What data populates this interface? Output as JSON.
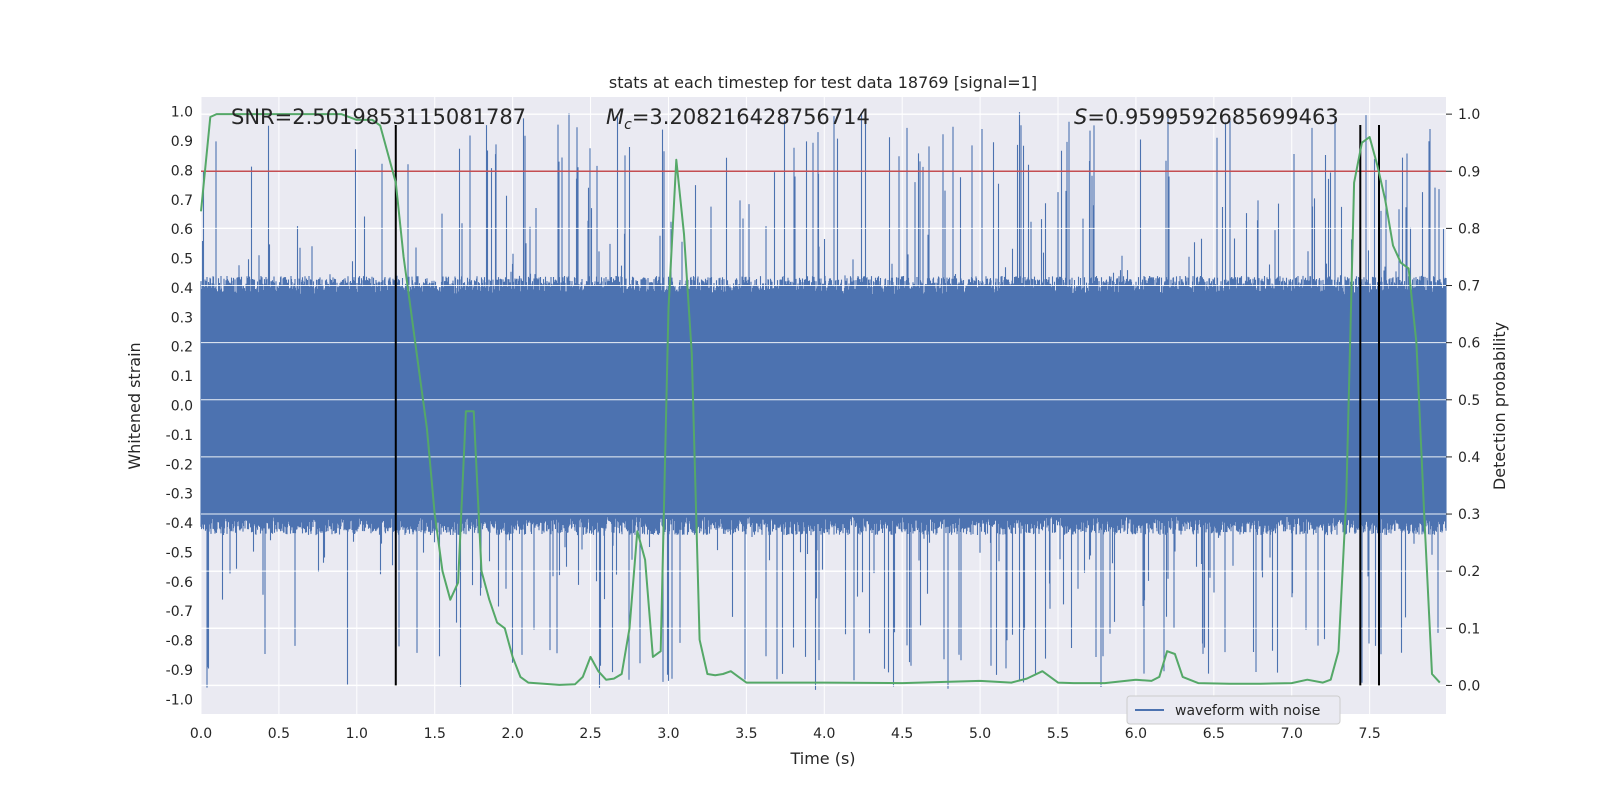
{
  "chart_data": {
    "type": "line",
    "title": "stats at each timestep for test data 18769 [signal=1]",
    "xlabel": "Time (s)",
    "ylabel_left": "Whitened strain",
    "ylabel_right": "Detection probability",
    "xlim": [
      0.0,
      7.99
    ],
    "ylim_left": [
      -1.05,
      1.05
    ],
    "ylim_right": [
      -0.05,
      1.03
    ],
    "x_ticks": [
      "0.0",
      "0.5",
      "1.0",
      "1.5",
      "2.0",
      "2.5",
      "3.0",
      "3.5",
      "4.0",
      "4.5",
      "5.0",
      "5.5",
      "6.0",
      "6.5",
      "7.0",
      "7.5"
    ],
    "left_ticks": [
      "1.0",
      "0.9",
      "0.8",
      "0.7",
      "0.6",
      "0.5",
      "0.4",
      "0.3",
      "0.2",
      "0.1",
      "0.0",
      "-0.1",
      "-0.2",
      "-0.3",
      "-0.4",
      "-0.5",
      "-0.6",
      "-0.7",
      "-0.8",
      "-0.9",
      "-1.0"
    ],
    "right_ticks": [
      "1.0",
      "0.9",
      "0.8",
      "0.7",
      "0.6",
      "0.5",
      "0.4",
      "0.3",
      "0.2",
      "0.1",
      "0.0"
    ],
    "grid": true,
    "legend_position": "lower-right",
    "colors": {
      "background": "#eaeaf2",
      "waveform": "#4c72b0",
      "probability": "#55a868",
      "threshold": "#c44e52",
      "markers": "#000000",
      "grid": "#ffffff"
    },
    "annotations": {
      "snr_text": "SNR=2.5019853115081787",
      "mc_symbol": "M",
      "mc_subscript": "c",
      "mc_value": "=3.208216428756714",
      "s_symbol": "S",
      "s_value": "=0.9599592685699463"
    },
    "series": [
      {
        "name": "waveform with noise",
        "axis": "left",
        "kind": "noise",
        "band_upper": 0.42,
        "band_lower": -0.42,
        "max_peak": 1.0,
        "min_peak": -0.97
      },
      {
        "axis": "right",
        "kind": "line",
        "x": [
          0.0,
          0.06,
          0.1,
          0.2,
          0.4,
          0.6,
          0.8,
          0.9,
          1.0,
          1.05,
          1.1,
          1.15,
          1.2,
          1.25,
          1.3,
          1.35,
          1.4,
          1.45,
          1.5,
          1.55,
          1.6,
          1.65,
          1.7,
          1.75,
          1.8,
          1.85,
          1.9,
          1.95,
          2.0,
          2.05,
          2.1,
          2.2,
          2.3,
          2.4,
          2.45,
          2.5,
          2.55,
          2.6,
          2.65,
          2.7,
          2.75,
          2.8,
          2.85,
          2.9,
          2.95,
          3.0,
          3.05,
          3.1,
          3.15,
          3.2,
          3.25,
          3.3,
          3.35,
          3.4,
          3.45,
          3.5,
          3.6,
          3.8,
          4.0,
          4.5,
          5.0,
          5.2,
          5.3,
          5.4,
          5.5,
          5.6,
          5.8,
          6.0,
          6.1,
          6.15,
          6.2,
          6.25,
          6.3,
          6.4,
          6.6,
          6.8,
          7.0,
          7.1,
          7.2,
          7.25,
          7.3,
          7.35,
          7.4,
          7.45,
          7.5,
          7.55,
          7.6,
          7.65,
          7.7,
          7.75,
          7.8,
          7.85,
          7.9,
          7.95
        ],
        "y": [
          0.83,
          0.995,
          1.0,
          1.0,
          1.0,
          1.0,
          1.0,
          1.0,
          0.99,
          0.99,
          0.99,
          0.98,
          0.93,
          0.88,
          0.75,
          0.65,
          0.55,
          0.45,
          0.3,
          0.2,
          0.15,
          0.18,
          0.48,
          0.48,
          0.2,
          0.15,
          0.11,
          0.1,
          0.05,
          0.015,
          0.005,
          0.003,
          0.001,
          0.002,
          0.015,
          0.05,
          0.025,
          0.01,
          0.012,
          0.02,
          0.1,
          0.27,
          0.22,
          0.05,
          0.06,
          0.66,
          0.92,
          0.79,
          0.58,
          0.08,
          0.02,
          0.018,
          0.02,
          0.025,
          0.015,
          0.005,
          0.005,
          0.005,
          0.005,
          0.004,
          0.008,
          0.005,
          0.012,
          0.025,
          0.005,
          0.004,
          0.004,
          0.01,
          0.008,
          0.015,
          0.06,
          0.055,
          0.015,
          0.004,
          0.003,
          0.003,
          0.004,
          0.01,
          0.005,
          0.01,
          0.06,
          0.33,
          0.88,
          0.95,
          0.96,
          0.91,
          0.85,
          0.77,
          0.74,
          0.73,
          0.6,
          0.3,
          0.02,
          0.005
        ]
      }
    ],
    "threshold_right": 0.9,
    "vertical_lines": [
      1.25,
      7.44,
      7.56
    ],
    "vertical_line_bottom_right": 0.0
  }
}
